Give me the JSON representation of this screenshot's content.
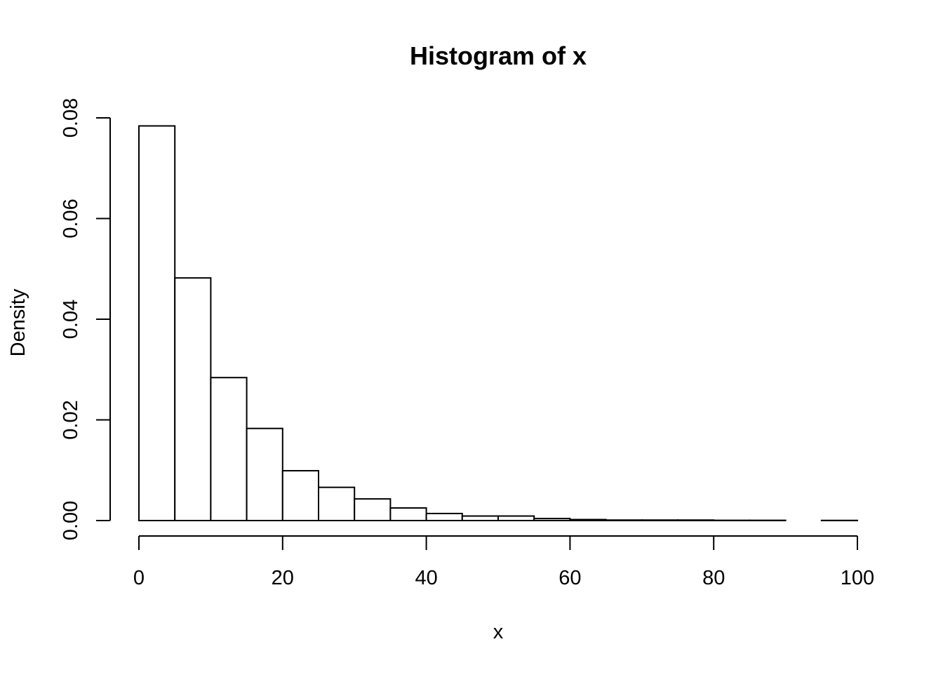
{
  "chart_data": {
    "type": "bar",
    "title": "Histogram of x",
    "xlabel": "x",
    "ylabel": "Density",
    "xlim": [
      0,
      100
    ],
    "ylim": [
      0,
      0.08
    ],
    "x_ticks": [
      "0",
      "20",
      "40",
      "60",
      "80",
      "100"
    ],
    "y_ticks": [
      "0.00",
      "0.02",
      "0.04",
      "0.06",
      "0.08"
    ],
    "grid": false,
    "legend": "none",
    "bin_width": 5,
    "bins": [
      {
        "start": 0,
        "end": 5,
        "density": 0.0784
      },
      {
        "start": 5,
        "end": 10,
        "density": 0.0482
      },
      {
        "start": 10,
        "end": 15,
        "density": 0.0284
      },
      {
        "start": 15,
        "end": 20,
        "density": 0.0183
      },
      {
        "start": 20,
        "end": 25,
        "density": 0.0099
      },
      {
        "start": 25,
        "end": 30,
        "density": 0.0066
      },
      {
        "start": 30,
        "end": 35,
        "density": 0.0043
      },
      {
        "start": 35,
        "end": 40,
        "density": 0.0025
      },
      {
        "start": 40,
        "end": 45,
        "density": 0.0014
      },
      {
        "start": 45,
        "end": 50,
        "density": 0.0009
      },
      {
        "start": 50,
        "end": 55,
        "density": 0.0009
      },
      {
        "start": 55,
        "end": 60,
        "density": 0.0004
      },
      {
        "start": 60,
        "end": 65,
        "density": 0.0002
      },
      {
        "start": 65,
        "end": 70,
        "density": 0.0001
      },
      {
        "start": 70,
        "end": 75,
        "density": 0.0001
      },
      {
        "start": 75,
        "end": 80,
        "density": 0.0001
      },
      {
        "start": 80,
        "end": 85,
        "density": 5e-05
      },
      {
        "start": 85,
        "end": 90,
        "density": 5e-05
      },
      {
        "start": 90,
        "end": 95,
        "density": 0.0
      },
      {
        "start": 95,
        "end": 100,
        "density": 3e-05
      }
    ]
  }
}
